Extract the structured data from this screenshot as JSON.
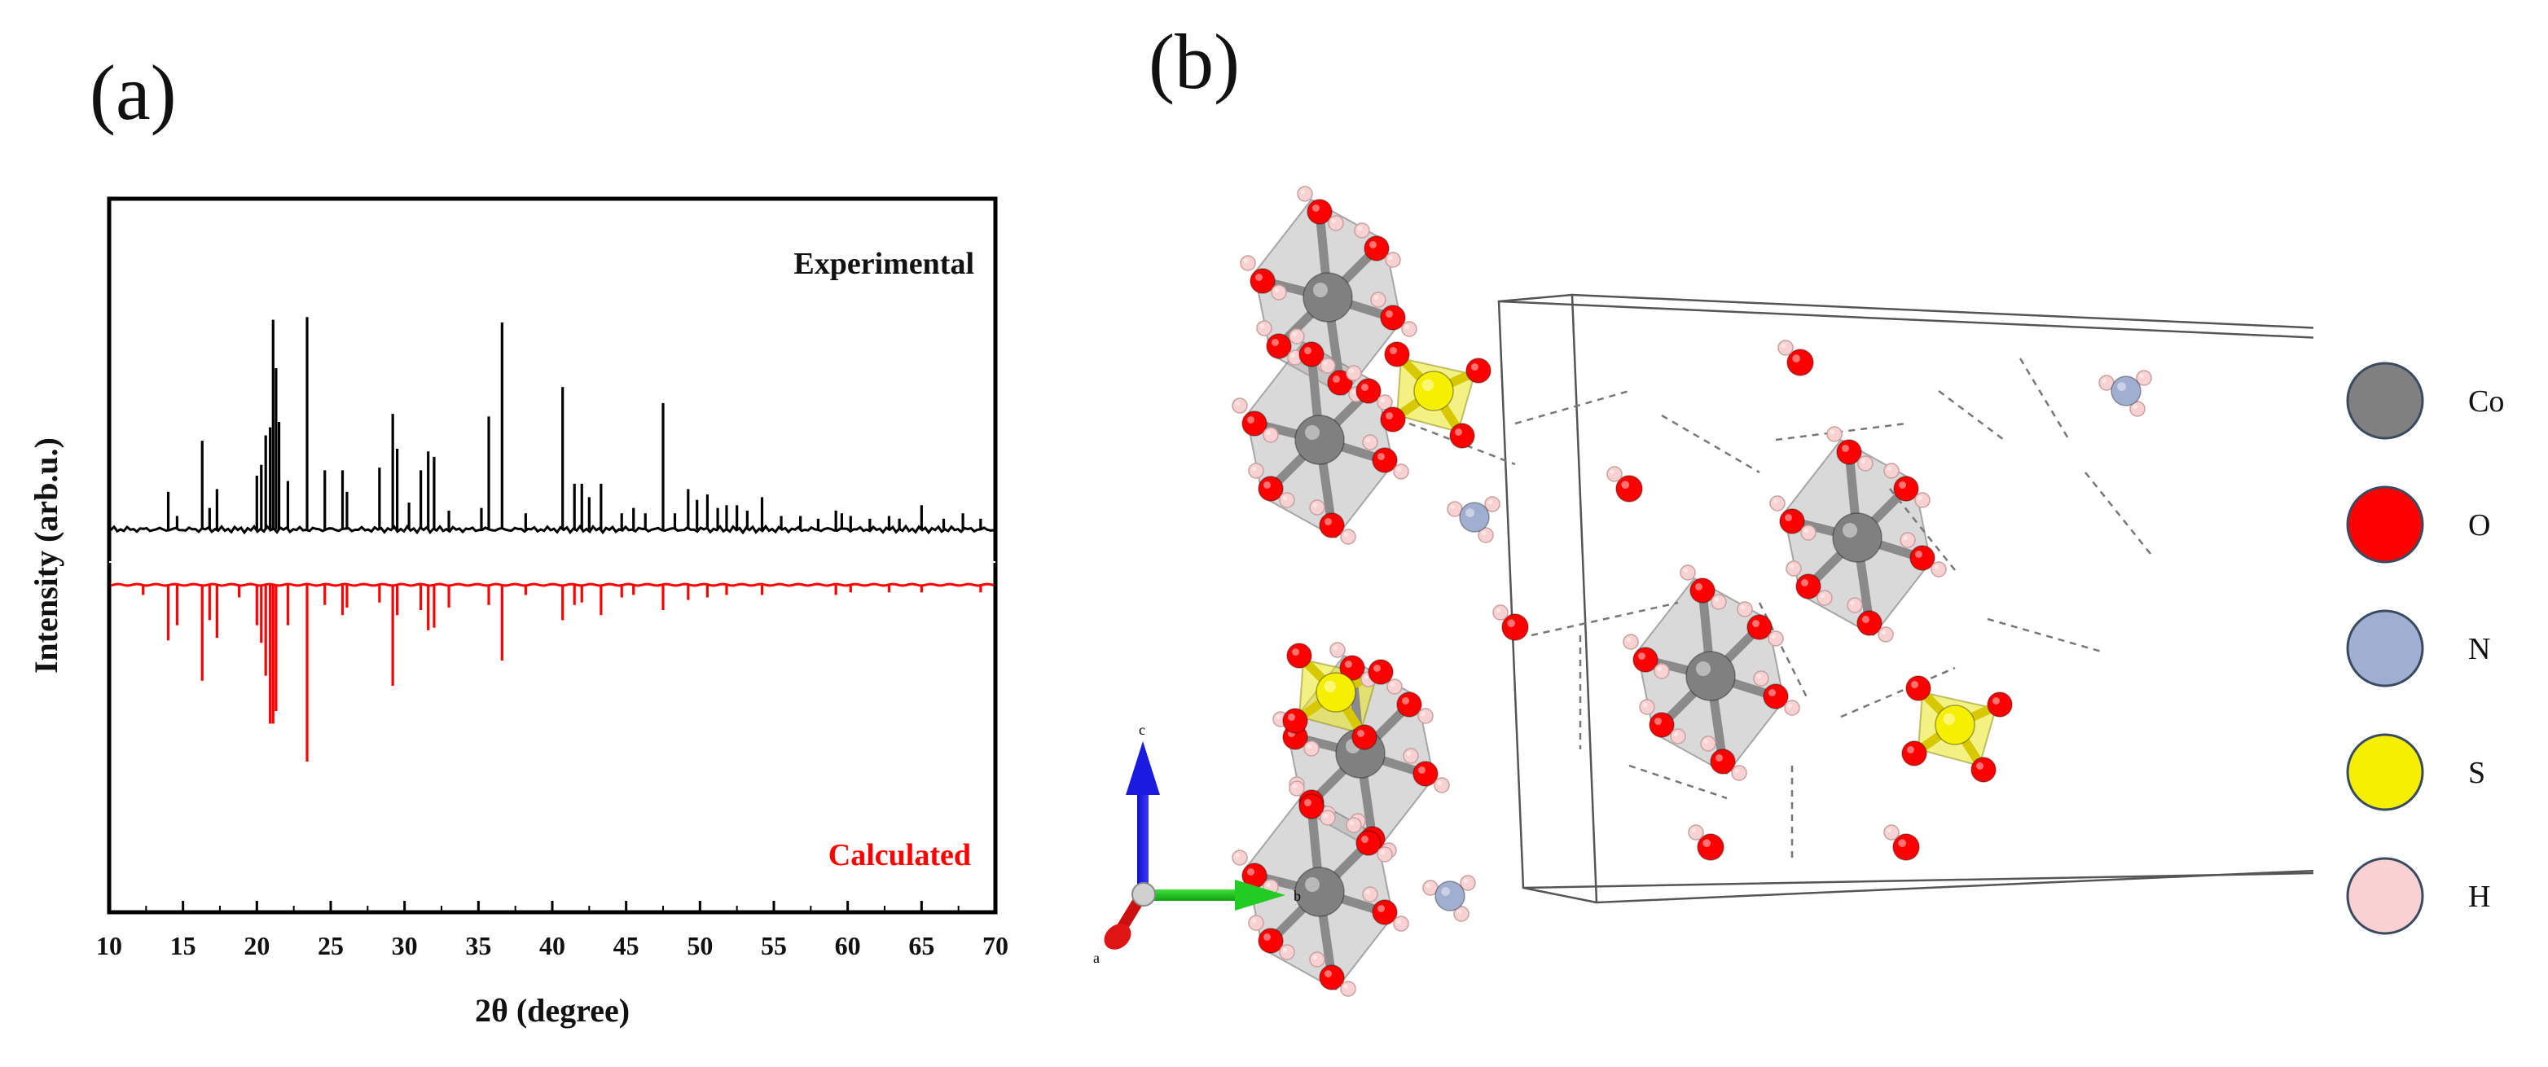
{
  "panels": {
    "a": "(a)",
    "b": "(b)"
  },
  "chart_data": {
    "type": "line",
    "title": "",
    "xlabel": "2θ (degree)",
    "ylabel": "Intensity (arb.u.)",
    "xlim": [
      10,
      70
    ],
    "xticks": [
      10,
      15,
      20,
      25,
      30,
      35,
      40,
      45,
      50,
      55,
      60,
      65,
      70
    ],
    "series": [
      {
        "name": "Experimental",
        "color": "#000000",
        "direction": "up",
        "peaks": [
          [
            14.0,
            0.14
          ],
          [
            14.6,
            0.05
          ],
          [
            16.3,
            0.33
          ],
          [
            16.8,
            0.08
          ],
          [
            17.3,
            0.15
          ],
          [
            20.0,
            0.2
          ],
          [
            20.3,
            0.24
          ],
          [
            20.6,
            0.35
          ],
          [
            20.9,
            0.38
          ],
          [
            21.1,
            0.78
          ],
          [
            21.3,
            0.6
          ],
          [
            21.5,
            0.4
          ],
          [
            22.1,
            0.18
          ],
          [
            23.4,
            0.79
          ],
          [
            24.6,
            0.22
          ],
          [
            25.8,
            0.22
          ],
          [
            26.1,
            0.14
          ],
          [
            28.3,
            0.23
          ],
          [
            29.2,
            0.43
          ],
          [
            29.5,
            0.3
          ],
          [
            30.3,
            0.1
          ],
          [
            31.1,
            0.22
          ],
          [
            31.6,
            0.29
          ],
          [
            32.0,
            0.27
          ],
          [
            33.0,
            0.07
          ],
          [
            35.2,
            0.08
          ],
          [
            35.7,
            0.42
          ],
          [
            36.6,
            0.77
          ],
          [
            38.2,
            0.06
          ],
          [
            40.7,
            0.53
          ],
          [
            41.5,
            0.17
          ],
          [
            42.0,
            0.17
          ],
          [
            42.5,
            0.12
          ],
          [
            43.3,
            0.17
          ],
          [
            44.7,
            0.06
          ],
          [
            45.5,
            0.08
          ],
          [
            46.3,
            0.06
          ],
          [
            47.5,
            0.47
          ],
          [
            48.3,
            0.06
          ],
          [
            49.2,
            0.15
          ],
          [
            49.8,
            0.11
          ],
          [
            50.5,
            0.13
          ],
          [
            51.2,
            0.08
          ],
          [
            51.8,
            0.09
          ],
          [
            52.5,
            0.09
          ],
          [
            53.2,
            0.07
          ],
          [
            54.2,
            0.12
          ],
          [
            55.5,
            0.05
          ],
          [
            56.8,
            0.05
          ],
          [
            58.0,
            0.04
          ],
          [
            59.2,
            0.07
          ],
          [
            59.6,
            0.06
          ],
          [
            60.2,
            0.05
          ],
          [
            61.5,
            0.04
          ],
          [
            62.8,
            0.05
          ],
          [
            63.5,
            0.04
          ],
          [
            65.0,
            0.09
          ],
          [
            66.5,
            0.04
          ],
          [
            67.8,
            0.06
          ],
          [
            69.0,
            0.04
          ]
        ]
      },
      {
        "name": "Calculated",
        "color": "#ff0000",
        "direction": "down",
        "peaks": [
          [
            12.3,
            0.04
          ],
          [
            14.0,
            0.22
          ],
          [
            14.6,
            0.16
          ],
          [
            16.3,
            0.38
          ],
          [
            16.8,
            0.14
          ],
          [
            17.3,
            0.21
          ],
          [
            18.8,
            0.05
          ],
          [
            20.0,
            0.16
          ],
          [
            20.3,
            0.23
          ],
          [
            20.6,
            0.36
          ],
          [
            20.9,
            0.55
          ],
          [
            21.1,
            0.55
          ],
          [
            21.3,
            0.5
          ],
          [
            22.1,
            0.16
          ],
          [
            23.4,
            0.7
          ],
          [
            24.6,
            0.08
          ],
          [
            25.8,
            0.12
          ],
          [
            26.1,
            0.09
          ],
          [
            28.3,
            0.07
          ],
          [
            29.2,
            0.4
          ],
          [
            29.5,
            0.12
          ],
          [
            31.1,
            0.1
          ],
          [
            31.6,
            0.18
          ],
          [
            32.0,
            0.17
          ],
          [
            33.0,
            0.09
          ],
          [
            35.7,
            0.08
          ],
          [
            36.6,
            0.3
          ],
          [
            38.2,
            0.04
          ],
          [
            40.7,
            0.14
          ],
          [
            41.5,
            0.08
          ],
          [
            42.0,
            0.07
          ],
          [
            43.3,
            0.12
          ],
          [
            44.7,
            0.05
          ],
          [
            45.5,
            0.04
          ],
          [
            47.5,
            0.1
          ],
          [
            49.2,
            0.06
          ],
          [
            50.5,
            0.05
          ],
          [
            51.8,
            0.04
          ],
          [
            54.2,
            0.04
          ],
          [
            59.2,
            0.04
          ],
          [
            60.2,
            0.03
          ],
          [
            62.8,
            0.03
          ],
          [
            65.0,
            0.03
          ],
          [
            69.0,
            0.03
          ]
        ]
      }
    ]
  },
  "axes3d": {
    "c": "c",
    "b": "b",
    "a": "a"
  },
  "legend": [
    {
      "label": "Co",
      "color": "#808080"
    },
    {
      "label": "O",
      "color": "#ff0000"
    },
    {
      "label": "N",
      "color": "#a0aed0"
    },
    {
      "label": "S",
      "color": "#f4f000"
    },
    {
      "label": "H",
      "color": "#f8d2d2"
    }
  ]
}
